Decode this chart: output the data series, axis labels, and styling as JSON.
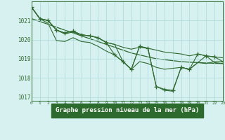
{
  "hours": [
    0,
    1,
    2,
    3,
    4,
    5,
    6,
    7,
    8,
    9,
    10,
    11,
    12,
    13,
    14,
    15,
    16,
    17,
    18,
    19,
    20,
    21,
    22,
    23
  ],
  "main_line": [
    1021.7,
    1021.1,
    1021.0,
    1020.5,
    1020.3,
    1020.4,
    1020.25,
    1020.2,
    1020.1,
    1019.85,
    1019.75,
    1019.6,
    1019.5,
    1019.6,
    1019.55,
    1019.45,
    1019.35,
    1019.3,
    1019.25,
    1019.15,
    1019.25,
    1019.15,
    1019.1,
    1019.05
  ],
  "lower_line": [
    1021.7,
    1021.1,
    1020.85,
    1019.95,
    1019.9,
    1020.1,
    1019.9,
    1019.85,
    1019.65,
    1019.4,
    1019.2,
    1018.85,
    1018.45,
    1018.85,
    1018.75,
    1018.55,
    1018.45,
    1018.5,
    1018.55,
    1018.45,
    1018.8,
    1018.75,
    1018.85,
    1018.85
  ],
  "zigzag_line": [
    1021.7,
    1021.1,
    1021.0,
    1020.5,
    1020.35,
    1020.45,
    1020.25,
    1020.2,
    1020.1,
    1019.85,
    1019.2,
    1018.85,
    1018.45,
    1019.65,
    1019.55,
    1017.55,
    1017.4,
    1017.35,
    1018.55,
    1018.45,
    1019.25,
    1019.15,
    1019.1,
    1018.85
  ],
  "dip_line": [
    1021.7,
    1021.1,
    1021.0,
    1020.5,
    1020.35,
    1020.45,
    1020.25,
    1020.2,
    1020.1,
    1019.85,
    1019.75,
    1018.85,
    1018.45,
    1019.65,
    1019.55,
    1017.55,
    1017.35,
    1017.3,
    1018.55,
    1018.45,
    1018.8,
    1019.15,
    1018.8,
    1018.75
  ],
  "trend_line": [
    1021.1,
    1020.95,
    1020.8,
    1020.65,
    1020.5,
    1020.35,
    1020.2,
    1020.05,
    1019.9,
    1019.75,
    1019.6,
    1019.45,
    1019.3,
    1019.2,
    1019.1,
    1019.0,
    1018.95,
    1018.9,
    1018.85,
    1018.82,
    1018.8,
    1018.78,
    1018.76,
    1018.75
  ],
  "ylim": [
    1016.8,
    1022.0
  ],
  "yticks": [
    1017,
    1018,
    1019,
    1020,
    1021
  ],
  "xlim": [
    0,
    23
  ],
  "line_color": "#2d6a2d",
  "bg_color": "#d7f0f0",
  "grid_color": "#b0dede",
  "xlabel": "Graphe pression niveau de la mer (hPa)",
  "xlabel_bg": "#2d6a2d",
  "xlabel_color": "#ffffff"
}
